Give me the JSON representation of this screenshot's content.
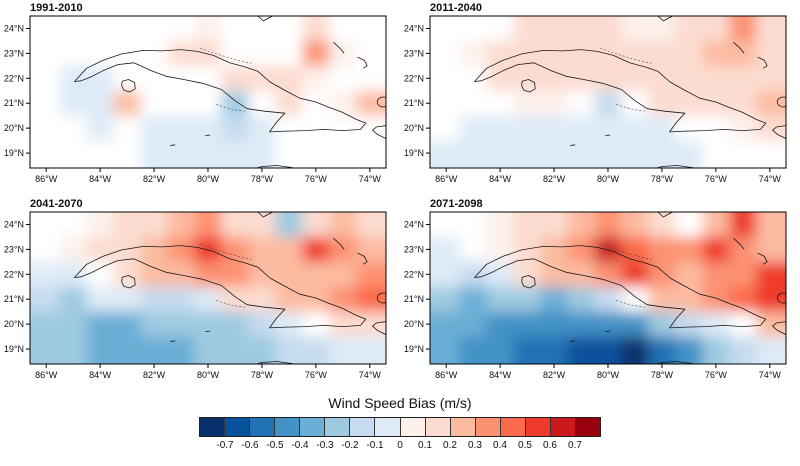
{
  "figure": {
    "type": "four-panel filled contour maps of wind speed bias around Cuba"
  },
  "axes": {
    "lat_ticks": [
      {
        "value": 24,
        "label": "24°N"
      },
      {
        "value": 23,
        "label": "23°N"
      },
      {
        "value": 22,
        "label": "22°N"
      },
      {
        "value": 21,
        "label": "21°N"
      },
      {
        "value": 20,
        "label": "20°N"
      },
      {
        "value": 19,
        "label": "19°N"
      }
    ],
    "lon_ticks": [
      {
        "value": 86,
        "label": "86°W"
      },
      {
        "value": 84,
        "label": "84°W"
      },
      {
        "value": 82,
        "label": "82°W"
      },
      {
        "value": 80,
        "label": "80°W"
      },
      {
        "value": 78,
        "label": "78°W"
      },
      {
        "value": 76,
        "label": "76°W"
      },
      {
        "value": 74,
        "label": "74°W"
      }
    ]
  },
  "colorbar": {
    "title": "Wind Speed Bias (m/s)",
    "tick_labels": [
      "-0.7",
      "-0.6",
      "-0.5",
      "-0.4",
      "-0.3",
      "-0.2",
      "-0.1",
      "0",
      "0.1",
      "0.2",
      "0.3",
      "0.4",
      "0.5",
      "0.6",
      "0.7"
    ],
    "colors": [
      "#08306b",
      "#08519c",
      "#2171b5",
      "#4292c6",
      "#6baed6",
      "#9ecae1",
      "#c6dbef",
      "#deebf7",
      "#fdf1ec",
      "#fcdcd0",
      "#fcbba1",
      "#fc9272",
      "#fb6a4a",
      "#ef3b2c",
      "#cb181d",
      "#99000d"
    ]
  },
  "chart_data": {
    "type": "heatmap",
    "variable": "Wind Speed Bias (m/s)",
    "region": "Cuba and surrounding Caribbean",
    "lon_w": [
      86,
      85,
      84,
      83,
      82,
      81,
      80,
      79,
      78,
      77,
      76,
      75,
      74
    ],
    "lat_n": [
      24,
      23,
      22,
      21,
      20,
      19
    ],
    "value_units": "m/s",
    "value_range": [
      -0.8,
      0.8
    ],
    "panels": [
      {
        "title": "1991-2010",
        "summary": "Near-zero bias overall; weak negative patches west and south of Cuba, small positive spots along the island and northeast",
        "values": [
          [
            0,
            0,
            0,
            0,
            0,
            0,
            0.05,
            0,
            0,
            0,
            0.1,
            0,
            0
          ],
          [
            0,
            0,
            0,
            0,
            0,
            0.1,
            0.1,
            0,
            0,
            0,
            0.35,
            0.05,
            0
          ],
          [
            0,
            -0.1,
            -0.1,
            0,
            0,
            0,
            0,
            0.1,
            0.15,
            0.1,
            0.05,
            0,
            0
          ],
          [
            0,
            -0.1,
            -0.1,
            0.2,
            0,
            0,
            0,
            -0.3,
            0,
            0.1,
            0,
            0.05,
            0.2
          ],
          [
            0,
            0,
            -0.05,
            0,
            -0.1,
            -0.1,
            -0.1,
            -0.15,
            -0.1,
            0,
            0,
            0,
            0
          ],
          [
            0,
            0,
            0,
            0,
            -0.05,
            -0.1,
            -0.1,
            -0.1,
            -0.05,
            0,
            0,
            0,
            0
          ]
        ]
      },
      {
        "title": "2011-2040",
        "summary": "Weak positive band (0.1-0.3) along the island axis, strongest northeast; weak negative bias south of Cuba",
        "values": [
          [
            0,
            0,
            0,
            0.1,
            0.1,
            0.1,
            0.1,
            0.05,
            0.05,
            0.1,
            0.15,
            0.35,
            0.15
          ],
          [
            0,
            0.05,
            0.1,
            0.15,
            0.15,
            0.15,
            0.15,
            0.1,
            0.1,
            0.15,
            0.25,
            0.2,
            0.1
          ],
          [
            0,
            0,
            0.1,
            0.1,
            0.1,
            0.1,
            0.15,
            0.15,
            0.15,
            0.15,
            0.1,
            0.1,
            0.15
          ],
          [
            0,
            0,
            0,
            0.05,
            0.05,
            0,
            -0.15,
            0,
            0.1,
            0.1,
            0.1,
            0.1,
            0.2
          ],
          [
            0,
            -0.05,
            -0.05,
            -0.05,
            -0.05,
            -0.1,
            -0.1,
            -0.1,
            -0.05,
            0,
            0,
            0.05,
            0.1
          ],
          [
            -0.05,
            -0.05,
            -0.05,
            -0.1,
            -0.1,
            -0.1,
            -0.1,
            -0.1,
            -0.1,
            -0.05,
            0,
            0,
            0
          ]
        ]
      },
      {
        "title": "2041-2070",
        "summary": "Moderate negative bias (-0.2 to -0.4) over seas southwest of Cuba; positive band (0.2-0.6) along the island and east",
        "values": [
          [
            0,
            0,
            0.05,
            0.1,
            0.1,
            0.2,
            0.3,
            0.15,
            0.1,
            -0.25,
            0.15,
            0.2,
            0.1
          ],
          [
            0,
            0.05,
            0.1,
            0.15,
            0.2,
            0.3,
            0.55,
            0.3,
            0.2,
            0.2,
            0.5,
            0.3,
            0.2
          ],
          [
            -0.1,
            -0.1,
            0,
            0.15,
            0.25,
            0.2,
            0.3,
            0.35,
            0.25,
            0.2,
            0.2,
            0.25,
            0.3
          ],
          [
            -0.2,
            -0.25,
            -0.05,
            -0.1,
            -0.2,
            -0.2,
            -0.1,
            0.1,
            0.15,
            0.2,
            0.2,
            0.3,
            0.45
          ],
          [
            -0.25,
            -0.3,
            -0.35,
            -0.35,
            -0.3,
            -0.3,
            -0.3,
            -0.25,
            -0.15,
            -0.1,
            0,
            0.1,
            0.15
          ],
          [
            -0.25,
            -0.3,
            -0.35,
            -0.4,
            -0.4,
            -0.35,
            -0.3,
            -0.3,
            -0.25,
            -0.2,
            -0.15,
            -0.1,
            -0.1
          ]
        ]
      },
      {
        "title": "2071-2098",
        "summary": "Strong negative bias (-0.4 to -0.7+) over the Caribbean south of Cuba, darkest near 78-80W 19N; strong positive spots (0.4-0.7) along the island",
        "values": [
          [
            0,
            0,
            0.05,
            0.1,
            0.1,
            0.2,
            0.3,
            0.2,
            0.1,
            0,
            0.2,
            0.5,
            0.2
          ],
          [
            -0.05,
            0,
            0.05,
            0.15,
            0.25,
            0.35,
            0.65,
            0.4,
            0.3,
            0.3,
            0.5,
            0.3,
            0.2
          ],
          [
            -0.1,
            -0.2,
            -0.1,
            0.1,
            0.2,
            0.25,
            0.3,
            0.5,
            0.3,
            0.25,
            0.3,
            0.35,
            0.5
          ],
          [
            -0.3,
            -0.35,
            -0.3,
            -0.3,
            -0.35,
            -0.3,
            -0.2,
            0,
            0.2,
            0.25,
            0.3,
            0.45,
            0.5
          ],
          [
            -0.35,
            -0.4,
            -0.45,
            -0.5,
            -0.5,
            -0.5,
            -0.5,
            -0.45,
            -0.3,
            -0.2,
            -0.1,
            0,
            0.2
          ],
          [
            -0.35,
            -0.45,
            -0.5,
            -0.55,
            -0.6,
            -0.65,
            -0.7,
            -0.75,
            -0.6,
            -0.45,
            -0.3,
            -0.2,
            -0.1
          ]
        ]
      }
    ]
  }
}
